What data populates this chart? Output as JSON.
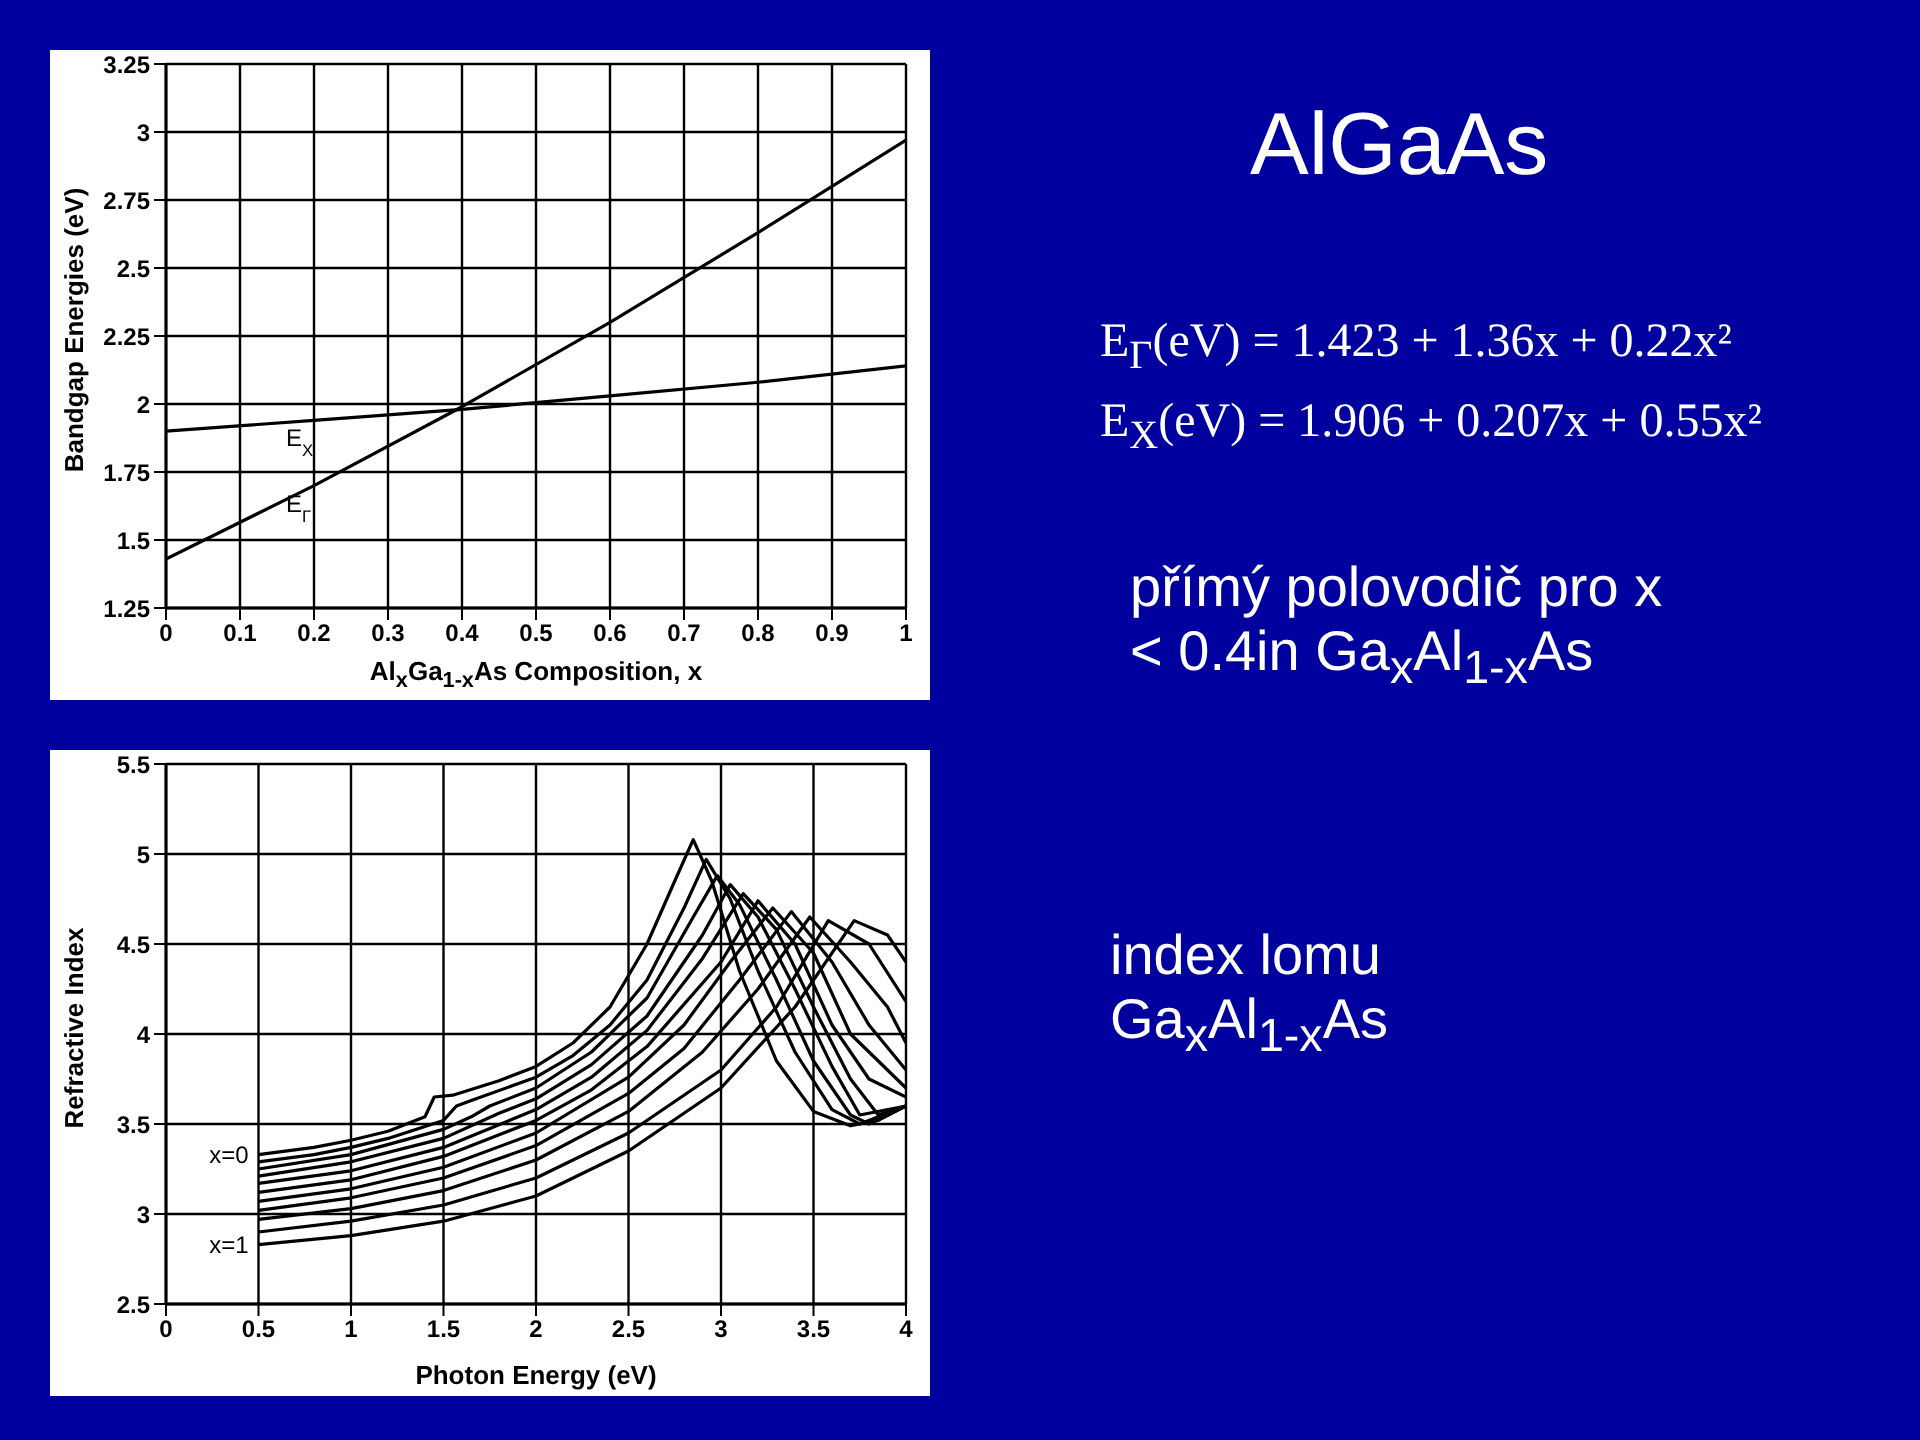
{
  "chart_data": [
    {
      "type": "line",
      "xlabel": "Al$_{x}$Ga$_{1-x}$As Composition, x",
      "ylabel": "Bandgap Energies (eV)",
      "x": [
        0,
        0.2,
        0.4,
        0.6,
        0.8,
        1
      ],
      "series": [
        {
          "name": "E$_{X}$",
          "color": "#000000",
          "values": [
            1.9,
            1.94,
            1.98,
            2.03,
            2.08,
            2.14
          ]
        },
        {
          "name": "E$_{Γ}$",
          "color": "#000000",
          "values": [
            1.43,
            1.7,
            1.99,
            2.3,
            2.63,
            2.97
          ]
        }
      ],
      "xlim": [
        0,
        1
      ],
      "xticks": [
        0,
        0.1,
        0.2,
        0.3,
        0.4,
        0.5,
        0.6,
        0.7,
        0.8,
        0.9,
        1
      ],
      "ylim": [
        1.25,
        3.25
      ],
      "yticks": [
        1.25,
        1.5,
        1.75,
        2,
        2.25,
        2.5,
        2.75,
        3,
        3.25
      ],
      "grid": true
    },
    {
      "type": "line",
      "xlabel": "Photon Energy (eV)",
      "ylabel": "Refractive Index",
      "series": [
        {
          "name": "x=0",
          "color": "#000000",
          "x": [
            0.5,
            0.8,
            1.0,
            1.2,
            1.4,
            1.45,
            1.55,
            1.8,
            2.0,
            2.2,
            2.4,
            2.6,
            2.75,
            2.85,
            2.95,
            3.1,
            3.3,
            3.5,
            3.7,
            3.85,
            4.0
          ],
          "values": [
            3.33,
            3.37,
            3.41,
            3.46,
            3.54,
            3.65,
            3.66,
            3.74,
            3.82,
            3.95,
            4.15,
            4.5,
            4.85,
            5.08,
            4.85,
            4.35,
            3.85,
            3.57,
            3.49,
            3.52,
            3.6
          ]
        },
        {
          "color": "#000000",
          "x": [
            0.5,
            0.8,
            1.0,
            1.2,
            1.5,
            1.57,
            1.65,
            2.0,
            2.2,
            2.4,
            2.6,
            2.8,
            2.92,
            3.05,
            3.2,
            3.4,
            3.6,
            3.75,
            4.0
          ],
          "values": [
            3.29,
            3.33,
            3.37,
            3.42,
            3.52,
            3.6,
            3.63,
            3.76,
            3.88,
            4.05,
            4.3,
            4.7,
            4.97,
            4.75,
            4.35,
            3.9,
            3.58,
            3.5,
            3.6
          ]
        },
        {
          "color": "#000000",
          "x": [
            0.5,
            1.0,
            1.5,
            1.65,
            1.75,
            2.0,
            2.3,
            2.6,
            2.85,
            2.98,
            3.1,
            3.3,
            3.5,
            3.7,
            3.8,
            4.0
          ],
          "values": [
            3.25,
            3.33,
            3.47,
            3.54,
            3.6,
            3.7,
            3.9,
            4.2,
            4.65,
            4.88,
            4.72,
            4.3,
            3.85,
            3.55,
            3.5,
            3.6
          ]
        },
        {
          "color": "#000000",
          "x": [
            0.5,
            1.0,
            1.5,
            1.8,
            2.0,
            2.3,
            2.6,
            2.9,
            3.05,
            3.2,
            3.4,
            3.6,
            3.75,
            4.0
          ],
          "values": [
            3.21,
            3.29,
            3.42,
            3.56,
            3.64,
            3.83,
            4.1,
            4.55,
            4.83,
            4.65,
            4.25,
            3.82,
            3.55,
            3.6
          ]
        },
        {
          "color": "#000000",
          "x": [
            0.5,
            1.0,
            1.5,
            2.0,
            2.3,
            2.6,
            2.9,
            3.12,
            3.3,
            3.5,
            3.7,
            3.85,
            4.0
          ],
          "values": [
            3.17,
            3.24,
            3.37,
            3.58,
            3.76,
            4.02,
            4.42,
            4.78,
            4.58,
            4.15,
            3.75,
            3.55,
            3.6
          ]
        },
        {
          "color": "#000000",
          "x": [
            0.5,
            1.0,
            1.5,
            2.0,
            2.3,
            2.6,
            3.0,
            3.2,
            3.4,
            3.6,
            3.8,
            4.0
          ],
          "values": [
            3.12,
            3.19,
            3.32,
            3.52,
            3.69,
            3.93,
            4.4,
            4.74,
            4.5,
            4.05,
            3.75,
            3.65
          ]
        },
        {
          "color": "#000000",
          "x": [
            0.5,
            1.0,
            1.5,
            2.0,
            2.5,
            2.8,
            3.05,
            3.28,
            3.5,
            3.7,
            3.9,
            4.0
          ],
          "values": [
            3.07,
            3.14,
            3.26,
            3.45,
            3.76,
            4.05,
            4.4,
            4.7,
            4.45,
            4.0,
            3.8,
            3.7
          ]
        },
        {
          "color": "#000000",
          "x": [
            0.5,
            1.0,
            1.5,
            2.0,
            2.5,
            2.8,
            3.1,
            3.38,
            3.6,
            3.8,
            4.0
          ],
          "values": [
            3.02,
            3.09,
            3.2,
            3.38,
            3.67,
            3.92,
            4.3,
            4.68,
            4.4,
            4.05,
            3.8
          ]
        },
        {
          "color": "#000000",
          "x": [
            0.5,
            1.0,
            1.5,
            2.0,
            2.5,
            2.9,
            3.2,
            3.48,
            3.7,
            3.9,
            4.0
          ],
          "values": [
            2.97,
            3.03,
            3.13,
            3.3,
            3.57,
            3.9,
            4.25,
            4.65,
            4.4,
            4.15,
            3.95
          ]
        },
        {
          "color": "#000000",
          "x": [
            0.5,
            1.0,
            1.5,
            2.0,
            2.5,
            3.0,
            3.3,
            3.58,
            3.8,
            4.0
          ],
          "values": [
            2.9,
            2.96,
            3.05,
            3.2,
            3.45,
            3.8,
            4.15,
            4.63,
            4.5,
            4.18
          ]
        },
        {
          "name": "x=1",
          "color": "#000000",
          "x": [
            0.5,
            1.0,
            1.5,
            2.0,
            2.5,
            3.0,
            3.4,
            3.72,
            3.9,
            4.0
          ],
          "values": [
            2.83,
            2.88,
            2.96,
            3.1,
            3.35,
            3.7,
            4.15,
            4.63,
            4.55,
            4.4
          ]
        }
      ],
      "xlim": [
        0,
        4
      ],
      "xticks": [
        0,
        0.5,
        1,
        1.5,
        2,
        2.5,
        3,
        3.5,
        4
      ],
      "ylim": [
        2.5,
        5.5
      ],
      "yticks": [
        2.5,
        3,
        3.5,
        4,
        4.5,
        5,
        5.5
      ],
      "grid": true
    },
    {
      "type": "other",
      "title": "AlGaAs",
      "annotations": [
        "E$_{Γ}$(eV) = 1.423 + 1.36x + 0.22x²",
        "E$_{X}$(eV) = 1.906 + 0.207x + 0.55x²",
        "přímý polovodič pro x < 0.4in Ga$_{x}$Al$_{1-x}$As",
        "index lomu Ga$_{x}$Al$_{1-x}$As"
      ]
    }
  ]
}
